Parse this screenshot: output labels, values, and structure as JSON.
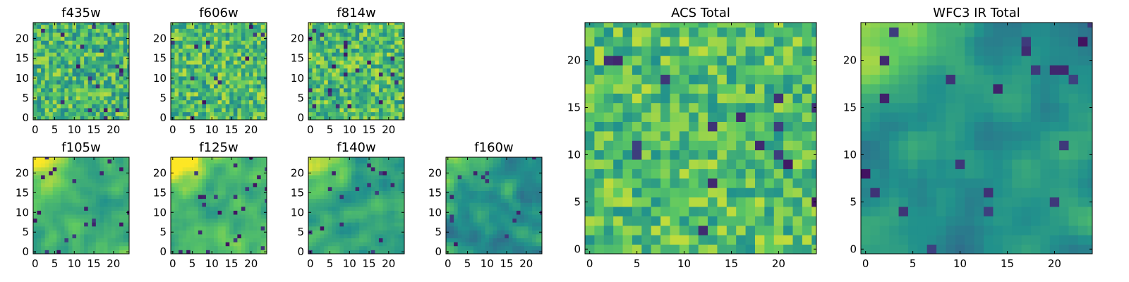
{
  "chart_data": {
    "type": "heatmap",
    "colormap": "viridis",
    "colormap_stops": [
      "#440154",
      "#3b528b",
      "#21918c",
      "#5ec962",
      "#fde725"
    ],
    "panels": [
      {
        "title": "f435w",
        "grid": [
          25,
          25
        ],
        "xticks": [
          "0",
          "5",
          "10",
          "15",
          "20"
        ],
        "yticks": [
          "0",
          "5",
          "10",
          "15",
          "20"
        ],
        "pattern": "noise",
        "mean": 0.66,
        "spread": 0.18
      },
      {
        "title": "f606w",
        "grid": [
          25,
          25
        ],
        "xticks": [
          "0",
          "5",
          "10",
          "15",
          "20"
        ],
        "yticks": [
          "0",
          "5",
          "10",
          "15",
          "20"
        ],
        "pattern": "noise",
        "mean": 0.68,
        "spread": 0.18
      },
      {
        "title": "f814w",
        "grid": [
          25,
          25
        ],
        "xticks": [
          "0",
          "5",
          "10",
          "15",
          "20"
        ],
        "yticks": [
          "0",
          "5",
          "10",
          "15",
          "20"
        ],
        "pattern": "noise",
        "mean": 0.68,
        "spread": 0.18
      },
      {
        "title": "f105w",
        "grid": [
          25,
          25
        ],
        "xticks": [
          "0",
          "5",
          "10",
          "15",
          "20"
        ],
        "yticks": [
          "0",
          "5",
          "10",
          "15",
          "20"
        ],
        "pattern": "smooth",
        "mean": 0.62,
        "spread": 0.17,
        "bright_corner": "top-left"
      },
      {
        "title": "f125w",
        "grid": [
          25,
          25
        ],
        "xticks": [
          "0",
          "5",
          "10",
          "15",
          "20"
        ],
        "yticks": [
          "0",
          "5",
          "10",
          "15",
          "20"
        ],
        "pattern": "smooth",
        "mean": 0.66,
        "spread": 0.2,
        "bright_corner": "top-left"
      },
      {
        "title": "f140w",
        "grid": [
          25,
          25
        ],
        "xticks": [
          "0",
          "5",
          "10",
          "15",
          "20"
        ],
        "yticks": [
          "0",
          "5",
          "10",
          "15",
          "20"
        ],
        "pattern": "smooth",
        "mean": 0.58,
        "spread": 0.2,
        "bright_corner": "top-left"
      },
      {
        "title": "f160w",
        "grid": [
          25,
          25
        ],
        "xticks": [
          "0",
          "5",
          "10",
          "15",
          "20"
        ],
        "yticks": [
          "0",
          "5",
          "10",
          "15",
          "20"
        ],
        "pattern": "smooth",
        "mean": 0.5,
        "spread": 0.2,
        "bright_corner": "top-left"
      },
      {
        "title": "ACS Total",
        "grid": [
          25,
          25
        ],
        "xticks": [
          "0",
          "5",
          "10",
          "15",
          "20"
        ],
        "yticks": [
          "0",
          "5",
          "10",
          "15",
          "20"
        ],
        "pattern": "noise",
        "mean": 0.7,
        "spread": 0.16
      },
      {
        "title": "WFC3 IR Total",
        "grid": [
          25,
          25
        ],
        "xticks": [
          "0",
          "5",
          "10",
          "15",
          "20"
        ],
        "yticks": [
          "0",
          "5",
          "10",
          "15",
          "20"
        ],
        "pattern": "smooth",
        "mean": 0.5,
        "spread": 0.17,
        "bright_corner": "top-left"
      }
    ]
  }
}
